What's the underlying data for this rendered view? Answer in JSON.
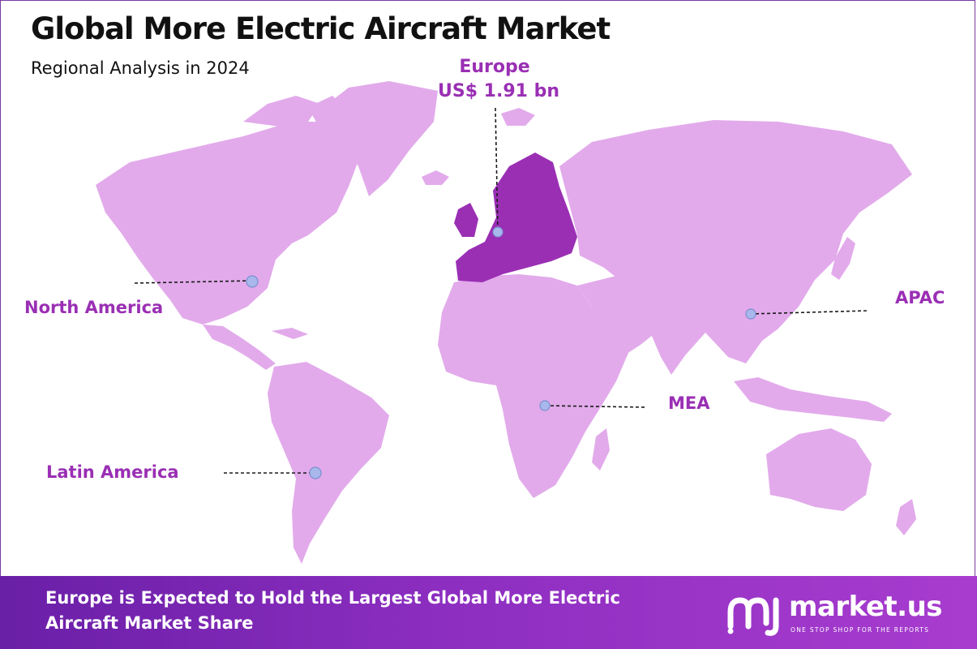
{
  "header": {
    "title": "Global More Electric Aircraft Market",
    "subtitle": "Regional Analysis in 2024"
  },
  "regions": {
    "europe": {
      "name": "Europe",
      "value": "US$ 1.91 bn",
      "highlighted": true
    },
    "north_america": {
      "name": "North America"
    },
    "apac": {
      "name": "APAC"
    },
    "mea": {
      "name": "MEA"
    },
    "latin_america": {
      "name": "Latin America"
    }
  },
  "colors": {
    "land": "#e2aaeb",
    "highlight": "#9a2fb4",
    "label": "#9a2fb4",
    "marker": "#a9b8ec",
    "footer_start": "#6a1fa7",
    "footer_end": "#a83ccf"
  },
  "footer": {
    "headline": "Europe is Expected to Hold the Largest Global More Electric Aircraft Market Share"
  },
  "brand": {
    "name": "market.us",
    "tagline": "ONE STOP SHOP FOR THE REPORTS"
  }
}
